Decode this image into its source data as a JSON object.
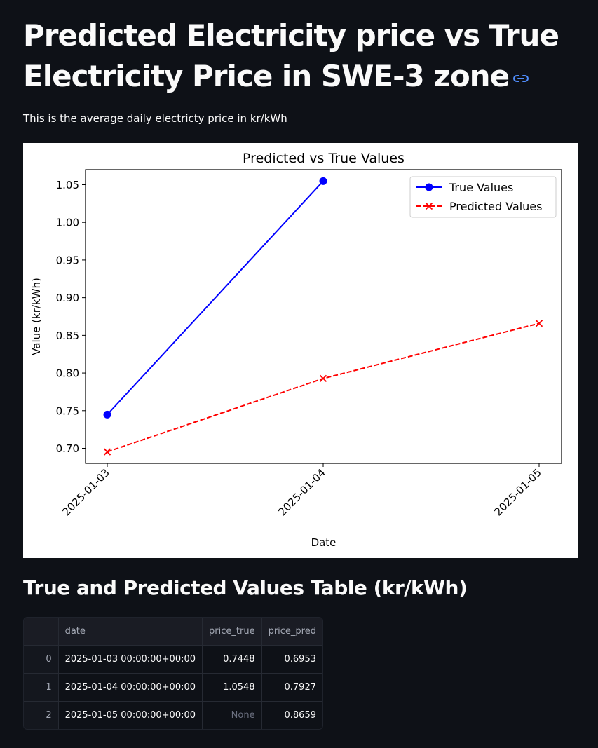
{
  "page": {
    "title": "Predicted Electricity price vs True Electricity Price in SWE-3 zone",
    "anchor_icon": "link-icon",
    "subtitle": "This is the average daily electricty price in kr/kWh",
    "table_title": "True and Predicted Values Table (kr/kWh)"
  },
  "colors": {
    "background": "#0e1117",
    "true_series": "#0000ff",
    "pred_series": "#ff0000",
    "anchor": "#4f8bf9"
  },
  "chart_data": {
    "type": "line",
    "title": "Predicted vs True Values",
    "xlabel": "Date",
    "ylabel": "Value (kr/kWh)",
    "x": [
      "2025-01-03",
      "2025-01-04",
      "2025-01-05"
    ],
    "yticks": [
      "0.70",
      "0.75",
      "0.80",
      "0.85",
      "0.90",
      "0.95",
      "1.00",
      "1.05"
    ],
    "ylim": [
      0.68,
      1.07
    ],
    "legend_position": "top-right",
    "grid": false,
    "series": [
      {
        "name": "True Values",
        "values": [
          0.7448,
          1.0548,
          null
        ],
        "color": "#0000ff",
        "style": "solid",
        "marker": "circle"
      },
      {
        "name": "Predicted Values",
        "values": [
          0.6953,
          0.7927,
          0.8659
        ],
        "color": "#ff0000",
        "style": "dashed",
        "marker": "x"
      }
    ]
  },
  "table": {
    "columns": [
      "",
      "date",
      "price_true",
      "price_pred"
    ],
    "rows": [
      {
        "index": "0",
        "date": "2025-01-03 00:00:00+00:00",
        "price_true": "0.7448",
        "price_pred": "0.6953"
      },
      {
        "index": "1",
        "date": "2025-01-04 00:00:00+00:00",
        "price_true": "1.0548",
        "price_pred": "0.7927"
      },
      {
        "index": "2",
        "date": "2025-01-05 00:00:00+00:00",
        "price_true": "None",
        "price_pred": "0.8659"
      }
    ]
  }
}
